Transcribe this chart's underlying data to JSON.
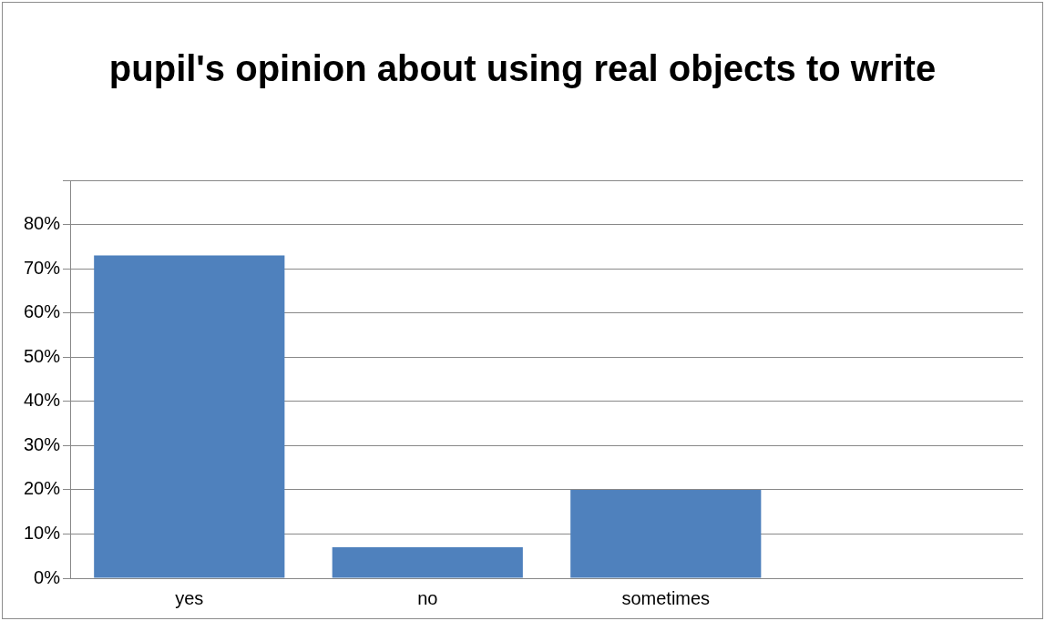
{
  "chart_data": {
    "type": "bar",
    "title": "pupil's opinion about using real objects to write",
    "categories": [
      "yes",
      "no",
      "sometimes",
      null
    ],
    "values": [
      73,
      7,
      20,
      null
    ],
    "color": "#4f81bd",
    "ylim": [
      0,
      90
    ],
    "yticks": [
      {
        "value": 0,
        "label": "0%"
      },
      {
        "value": 10,
        "label": "10%"
      },
      {
        "value": 20,
        "label": "20%"
      },
      {
        "value": 30,
        "label": "30%"
      },
      {
        "value": 40,
        "label": "40%"
      },
      {
        "value": 50,
        "label": "50%"
      },
      {
        "value": 60,
        "label": "60%"
      },
      {
        "value": 70,
        "label": "70%"
      },
      {
        "value": 80,
        "label": "80%"
      },
      {
        "value": 90,
        "label": null
      }
    ],
    "grid": "y",
    "legend": false
  }
}
